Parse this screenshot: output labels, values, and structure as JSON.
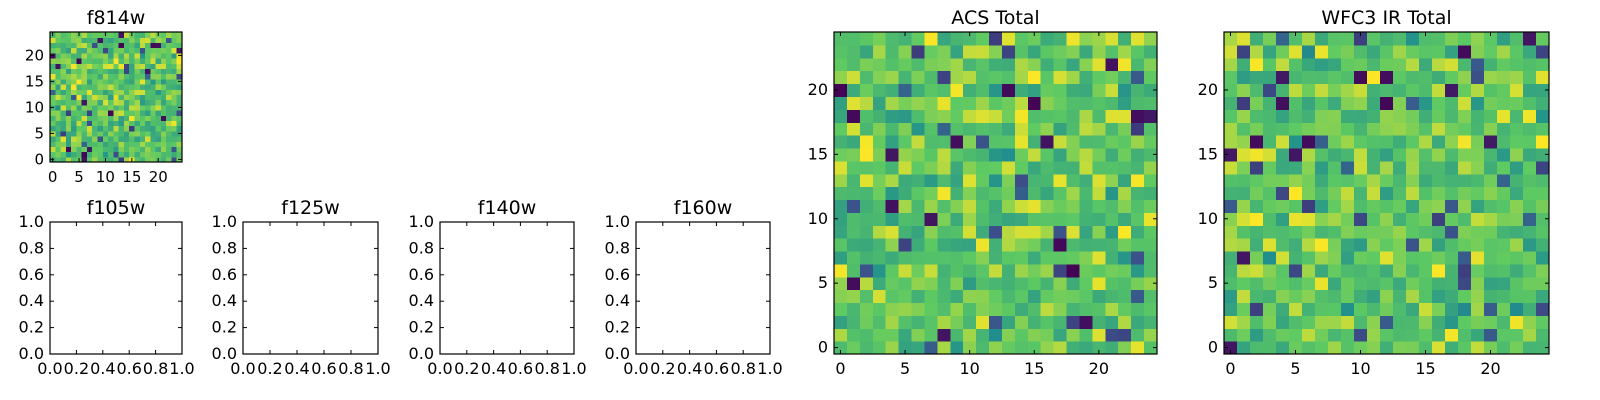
{
  "colors": {
    "colormap": [
      "#440154",
      "#3b528b",
      "#21908d",
      "#5dc963",
      "#fde725"
    ],
    "frame": "#000000",
    "background": "#ffffff"
  },
  "chart_data": [
    {
      "id": "f814w",
      "type": "heatmap",
      "title": "f814w",
      "grid_size": 25,
      "xlim": [
        -0.5,
        24.5
      ],
      "ylim": [
        -0.5,
        24.5
      ],
      "xticks": [
        0,
        5,
        10,
        15,
        20
      ],
      "yticks": [
        0,
        5,
        10,
        15,
        20
      ],
      "value_range": [
        0,
        1
      ],
      "seed": 814,
      "values_note": "25x25 per-pixel values",
      "grid": false
    },
    {
      "id": "f105w",
      "type": "heatmap",
      "title": "f105w",
      "xlim": [
        0,
        1
      ],
      "ylim": [
        0,
        1
      ],
      "xticks": [
        "0.0",
        "0.2",
        "0.4",
        "0.6",
        "0.8",
        "1.0"
      ],
      "yticks": [
        "0.0",
        "0.2",
        "0.4",
        "0.6",
        "0.8",
        "1.0"
      ],
      "empty": true
    },
    {
      "id": "f125w",
      "type": "heatmap",
      "title": "f125w",
      "xlim": [
        0,
        1
      ],
      "ylim": [
        0,
        1
      ],
      "xticks": [
        "0.0",
        "0.2",
        "0.4",
        "0.6",
        "0.8",
        "1.0"
      ],
      "yticks": [
        "0.0",
        "0.2",
        "0.4",
        "0.6",
        "0.8",
        "1.0"
      ],
      "empty": true
    },
    {
      "id": "f140w",
      "type": "heatmap",
      "title": "f140w",
      "xlim": [
        0,
        1
      ],
      "ylim": [
        0,
        1
      ],
      "xticks": [
        "0.0",
        "0.2",
        "0.4",
        "0.6",
        "0.8",
        "1.0"
      ],
      "yticks": [
        "0.0",
        "0.2",
        "0.4",
        "0.6",
        "0.8",
        "1.0"
      ],
      "empty": true
    },
    {
      "id": "f160w",
      "type": "heatmap",
      "title": "f160w",
      "xlim": [
        0,
        1
      ],
      "ylim": [
        0,
        1
      ],
      "xticks": [
        "0.0",
        "0.2",
        "0.4",
        "0.6",
        "0.8",
        "1.0"
      ],
      "yticks": [
        "0.0",
        "0.2",
        "0.4",
        "0.6",
        "0.8",
        "1.0"
      ],
      "empty": true
    },
    {
      "id": "acs-total",
      "type": "heatmap",
      "title": "ACS Total",
      "grid_size": 25,
      "xlim": [
        -0.5,
        24.5
      ],
      "ylim": [
        -0.5,
        24.5
      ],
      "xticks": [
        0,
        5,
        10,
        15,
        20
      ],
      "yticks": [
        0,
        5,
        10,
        15,
        20
      ],
      "value_range": [
        0,
        1
      ],
      "seed": 4242,
      "grid": false
    },
    {
      "id": "wfc3-ir-total",
      "type": "heatmap",
      "title": "WFC3 IR Total",
      "grid_size": 25,
      "xlim": [
        -0.5,
        24.5
      ],
      "ylim": [
        -0.5,
        24.5
      ],
      "xticks": [
        0,
        5,
        10,
        15,
        20
      ],
      "yticks": [
        0,
        5,
        10,
        15,
        20
      ],
      "value_range": [
        0,
        1
      ],
      "seed": 1603,
      "grid": false
    }
  ]
}
